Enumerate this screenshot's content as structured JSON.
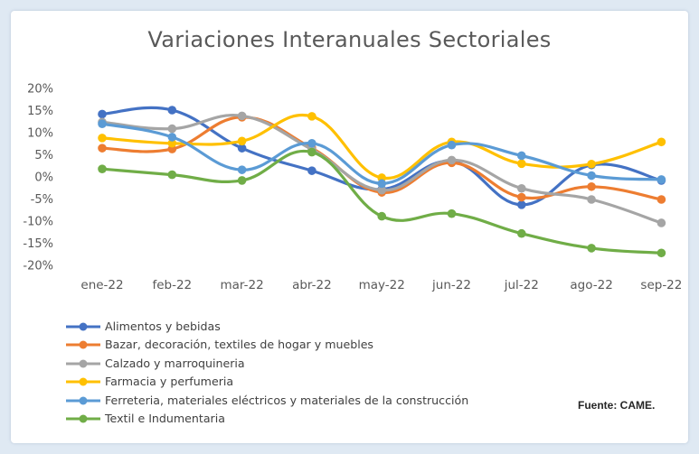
{
  "source_note": "Fuente: CAME.",
  "chart_data": {
    "type": "line",
    "title": "Variaciones Interanuales Sectoriales",
    "categories": [
      "ene-22",
      "feb-22",
      "mar-22",
      "abr-22",
      "may-22",
      "jun-22",
      "jul-22",
      "ago-22",
      "sep-22"
    ],
    "y_ticks": [
      "20%",
      "15%",
      "10%",
      "5%",
      "0%",
      "-5%",
      "-10%",
      "-15%",
      "-20%"
    ],
    "ylim": [
      -20,
      20
    ],
    "grid": false,
    "legend_position": "bottom",
    "series": [
      {
        "name": "Alimentos y bebidas",
        "color": "#4472c4",
        "values": [
          14.2,
          15.1,
          6.5,
          1.4,
          -2.8,
          3.5,
          -6.3,
          2.7,
          -0.8
        ]
      },
      {
        "name": "Bazar, decoración, textiles de hogar y muebles",
        "color": "#ed7d31",
        "values": [
          6.5,
          6.3,
          13.5,
          6.5,
          -3.5,
          3.2,
          -4.6,
          -2.2,
          -5.1
        ]
      },
      {
        "name": "Calzado y marroquineria",
        "color": "#a5a5a5",
        "values": [
          12.4,
          10.9,
          13.8,
          6.2,
          -3.0,
          3.8,
          -2.6,
          -5.1,
          -10.4
        ]
      },
      {
        "name": "Farmacia y perfumeria",
        "color": "#ffc000",
        "values": [
          8.8,
          7.6,
          8.1,
          13.7,
          -0.2,
          7.9,
          3.0,
          2.9,
          7.9
        ]
      },
      {
        "name": "Ferreteria, materiales eléctricos y materiales de la construcción",
        "color": "#5b9bd5",
        "values": [
          12.0,
          9.0,
          1.6,
          7.6,
          -1.5,
          7.2,
          4.8,
          0.3,
          -0.6
        ]
      },
      {
        "name": "Textil e Indumentaria",
        "color": "#70ad47",
        "values": [
          1.8,
          0.5,
          -0.8,
          5.6,
          -8.9,
          -8.3,
          -12.8,
          -16.1,
          -17.2
        ]
      }
    ]
  }
}
